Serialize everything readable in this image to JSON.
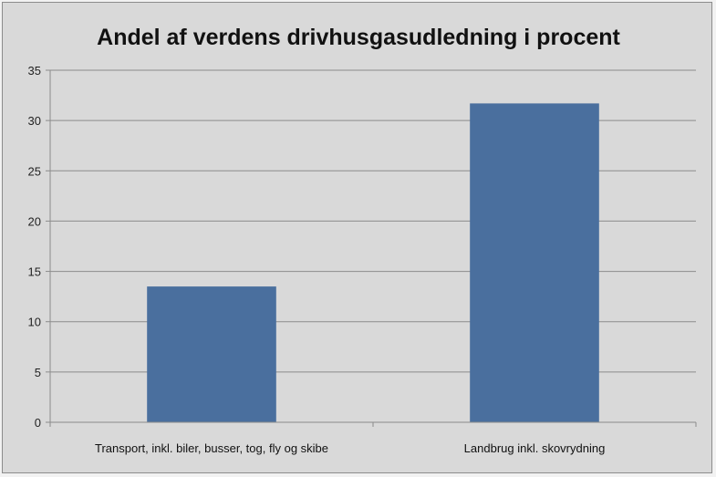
{
  "chart_data": {
    "type": "bar",
    "title": "Andel af verdens drivhusgasudledning i procent",
    "categories": [
      "Transport, inkl. biler, busser, tog, fly og skibe",
      "Landbrug inkl. skovrydning"
    ],
    "values": [
      13.5,
      31.7
    ],
    "xlabel": "",
    "ylabel": "",
    "ylim": [
      0,
      35
    ],
    "yticks": [
      0,
      5,
      10,
      15,
      20,
      25,
      30,
      35
    ],
    "grid": true,
    "legend": "none",
    "colors": {
      "bar": "#4a6f9e",
      "background": "#d9d9d9",
      "grid": "#8c8c8c",
      "axis": "#8c8c8c"
    }
  }
}
